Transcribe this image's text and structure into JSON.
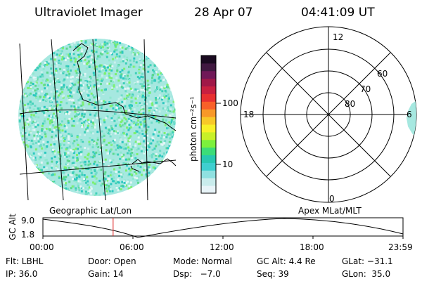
{
  "header": {
    "instrument": "Ultraviolet Imager",
    "date": "28 Apr 07",
    "time": "04:41:09 UT"
  },
  "colorbar": {
    "label": "photon cm⁻²s⁻¹",
    "ticks": [
      "100",
      "10"
    ],
    "colors": [
      "#e8f4f8",
      "#c9ecec",
      "#8fe0e0",
      "#3fcfcf",
      "#28c8b0",
      "#3cdc78",
      "#7cf03c",
      "#c8f028",
      "#f8f028",
      "#f8c828",
      "#f89828",
      "#f86028",
      "#e83030",
      "#c82040",
      "#a01848",
      "#701858",
      "#401840",
      "#1a0a20"
    ]
  },
  "polar": {
    "mlt_labels": [
      "12",
      "18",
      "6",
      "0"
    ],
    "lat_labels": [
      "60",
      "70",
      "80"
    ]
  },
  "timeline": {
    "left_title": "Geographic Lat/Lon",
    "right_title": "Apex MLat/MLT",
    "axis_label": "GC Alt",
    "y_ticks": [
      "9.0",
      "1.8"
    ],
    "x_ticks": [
      "00:00",
      "06:00",
      "12:00",
      "18:00",
      "23:59"
    ],
    "current_time_fraction": 0.195
  },
  "info": {
    "flt": "Flt: LBHL",
    "door": "Door: Open",
    "mode": "Mode: Normal",
    "gc_alt": "GC Alt: 4.4 Re",
    "glat": "GLat: −31.1",
    "ip": "IP: 36.0",
    "gain": "Gain: 14",
    "dsp": "Dsp:   −7.0",
    "seq": "Seq: 39",
    "glon": "GLon:  35.0"
  }
}
